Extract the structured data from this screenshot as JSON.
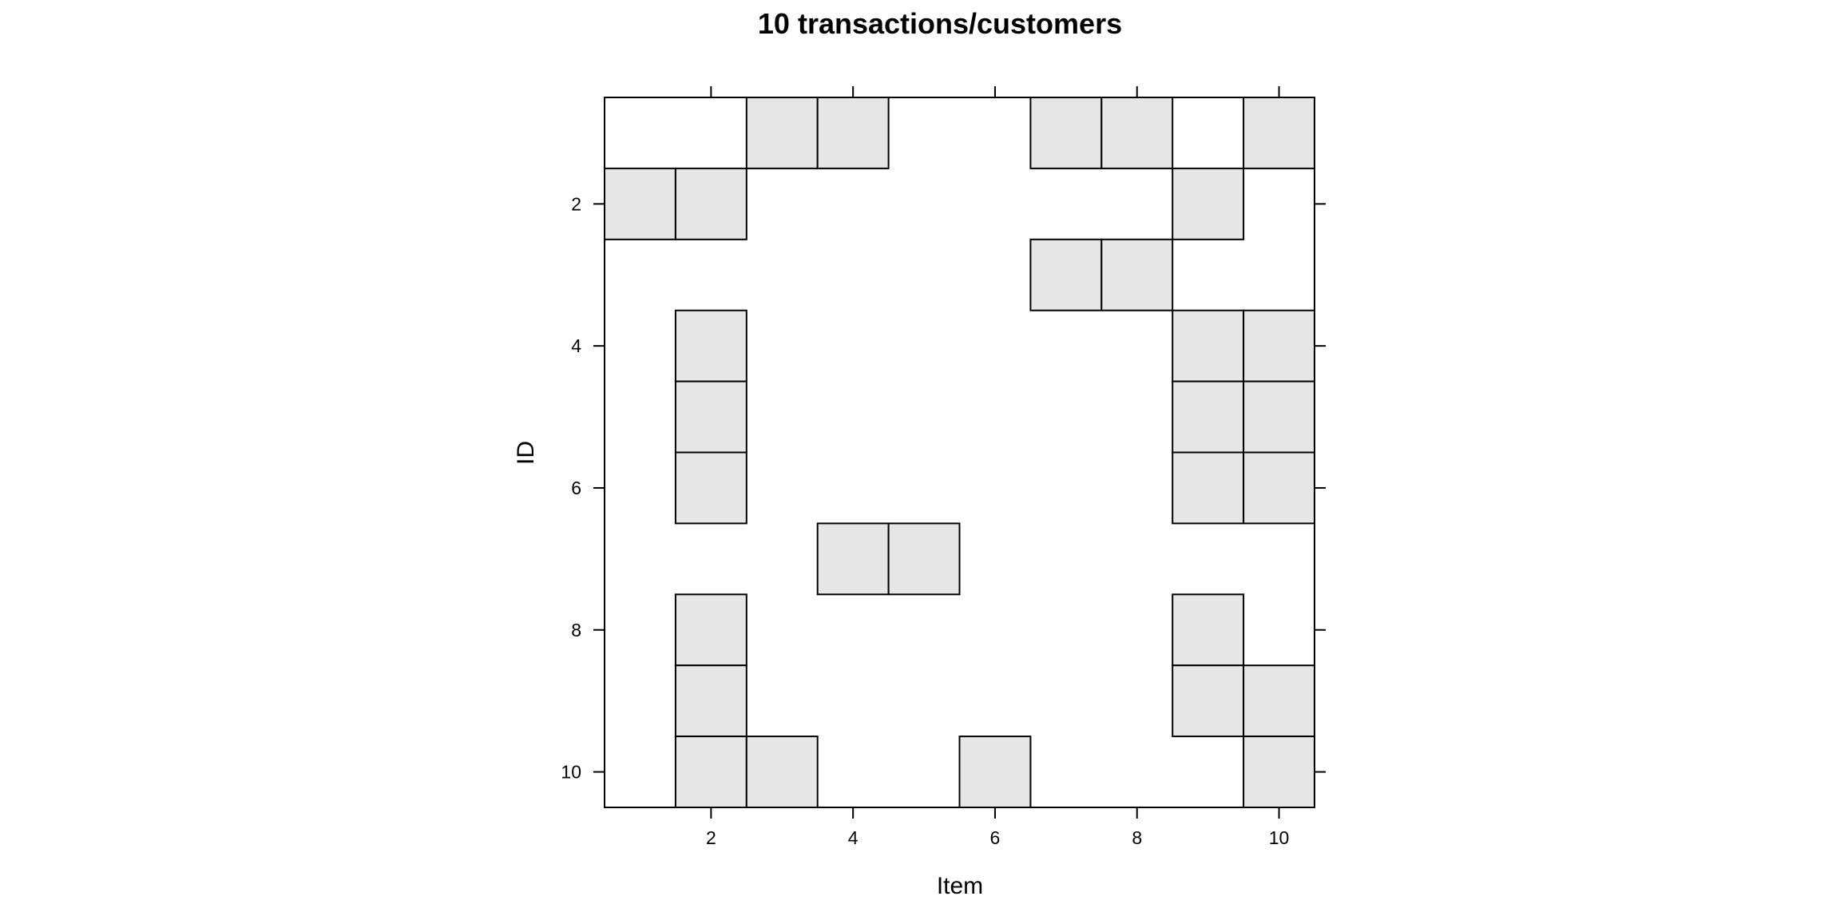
{
  "chart_data": {
    "type": "heatmap",
    "title": "10 transactions/customers",
    "xlabel": "Item",
    "ylabel": "ID",
    "xlim": [
      0.5,
      10.5
    ],
    "ylim": [
      10.5,
      0.5
    ],
    "x_ticks": [
      2,
      4,
      6,
      8,
      10
    ],
    "y_ticks": [
      2,
      4,
      6,
      8,
      10
    ],
    "x_tick_labels": [
      "2",
      "4",
      "6",
      "8",
      "10"
    ],
    "y_tick_labels": [
      "2",
      "4",
      "6",
      "8",
      "10"
    ],
    "y_axis_inverted": true,
    "fill_color": "#e6e6e6",
    "background_color": "#ffffff",
    "rows": [
      {
        "id": 1,
        "items": [
          3,
          4,
          7,
          8,
          10
        ]
      },
      {
        "id": 2,
        "items": [
          1,
          2,
          9
        ]
      },
      {
        "id": 3,
        "items": [
          7,
          8
        ]
      },
      {
        "id": 4,
        "items": [
          2,
          9,
          10
        ]
      },
      {
        "id": 5,
        "items": [
          2,
          9,
          10
        ]
      },
      {
        "id": 6,
        "items": [
          2,
          9,
          10
        ]
      },
      {
        "id": 7,
        "items": [
          4,
          5
        ]
      },
      {
        "id": 8,
        "items": [
          2,
          9
        ]
      },
      {
        "id": 9,
        "items": [
          2,
          9,
          10
        ]
      },
      {
        "id": 10,
        "items": [
          2,
          3,
          6,
          10
        ]
      }
    ]
  }
}
